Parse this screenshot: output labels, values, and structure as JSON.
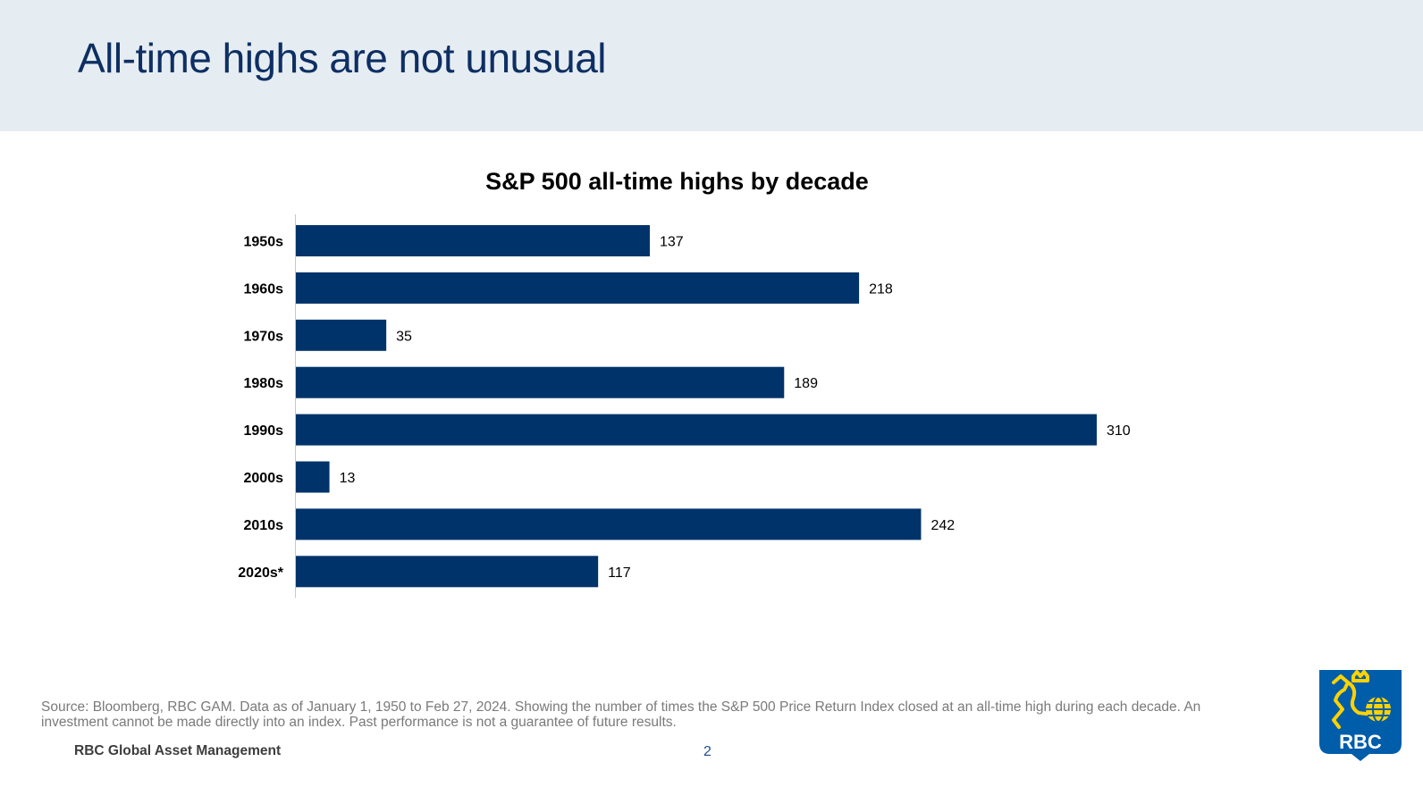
{
  "slide": {
    "title": "All-time highs are not unusual",
    "footnote": "Source: Bloomberg, RBC GAM. Data as of January 1, 1950 to Feb 27, 2024. Showing the number of times the S&P 500 Price Return Index closed at an all-time high during each decade. An investment cannot be made directly into an index. Past performance is not a guarantee of future results.",
    "brand": "RBC Global Asset Management",
    "page_number": "2",
    "logo_text": "RBC"
  },
  "colors": {
    "bar": "#00336a",
    "title": "#0e2f63",
    "header_band": "#e6edf2",
    "logo_blue": "#005daa",
    "logo_yellow": "#ffd200"
  },
  "chart_data": {
    "type": "bar",
    "orientation": "horizontal",
    "title": "S&P 500 all-time highs by decade",
    "categories": [
      "1950s",
      "1960s",
      "1970s",
      "1980s",
      "1990s",
      "2000s",
      "2010s",
      "2020s*"
    ],
    "values": [
      137,
      218,
      35,
      189,
      310,
      13,
      242,
      117
    ],
    "xlabel": "",
    "ylabel": "",
    "xlim": [
      0,
      310
    ],
    "grid": false,
    "data_labels": true
  }
}
